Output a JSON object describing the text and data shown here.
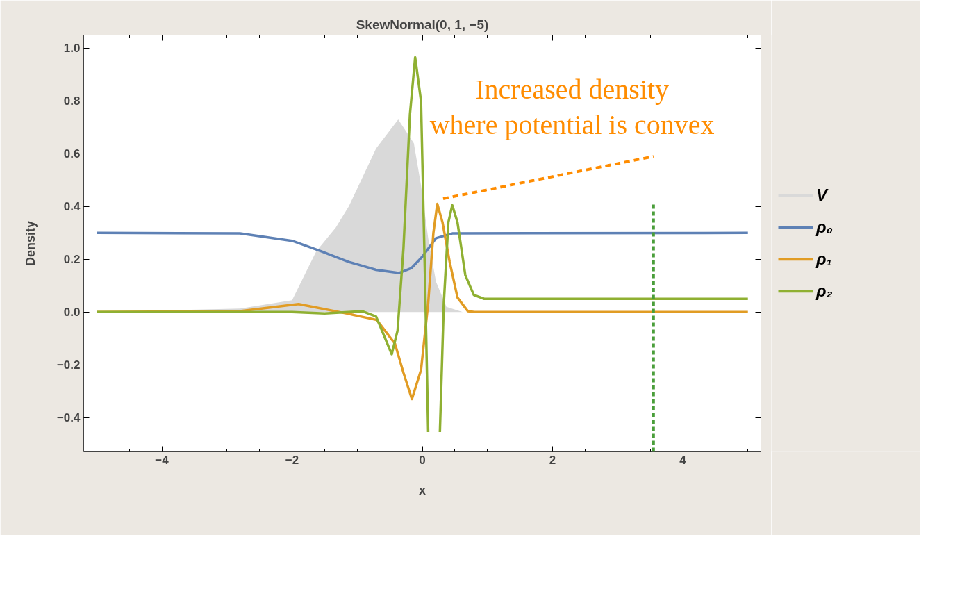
{
  "chart_data": {
    "type": "line",
    "title": "SkewNormal(0, 1, −5)",
    "xlabel": "x",
    "ylabel": "Density",
    "xlim": [
      -5.2,
      5.2
    ],
    "ylim": [
      -0.53,
      1.05
    ],
    "xticks": [
      {
        "value": -4,
        "label": "−4"
      },
      {
        "value": -2,
        "label": "−2"
      },
      0,
      2,
      4,
      {
        "value": -5,
        "label": null
      },
      {
        "value": -4.5,
        "label": null
      },
      {
        "value": -3.5,
        "label": null
      },
      {
        "value": -3,
        "label": null
      },
      {
        "value": -2.5,
        "label": null
      },
      {
        "value": -1.5,
        "label": null
      },
      {
        "value": -1,
        "label": null
      },
      {
        "value": -0.5,
        "label": null
      },
      {
        "value": 0.5,
        "label": null
      },
      {
        "value": 1,
        "label": null
      },
      {
        "value": 1.5,
        "label": null
      },
      {
        "value": 2.5,
        "label": null
      },
      {
        "value": 3,
        "label": null
      },
      {
        "value": 3.5,
        "label": null
      },
      {
        "value": 4.5,
        "label": null
      },
      {
        "value": 5,
        "label": null
      }
    ],
    "yticks": [
      {
        "value": -0.4,
        "label": "−0.4"
      },
      {
        "value": -0.2,
        "label": "−0.2"
      },
      {
        "value": 0,
        "label": "0.0"
      },
      0.2,
      0.4,
      0.6,
      0.8,
      {
        "value": 1,
        "label": "1.0"
      }
    ],
    "legend": "right",
    "series": [
      {
        "name": "V",
        "type": "area",
        "color": "#d9d9d9",
        "x": [
          -5,
          -2.8,
          -2,
          -1.63,
          -1.33,
          -1.13,
          -0.71,
          -0.37,
          -0.13,
          -0.02,
          0.09,
          0.21,
          0.37,
          0.62,
          5
        ],
        "values": [
          0,
          0.013,
          0.045,
          0.23,
          0.32,
          0.4,
          0.62,
          0.73,
          0.64,
          0.48,
          0.28,
          0.115,
          0.02,
          0,
          0
        ]
      },
      {
        "name": "ρ₀",
        "color": "#5e81b5",
        "x": [
          -5,
          -2.8,
          -2,
          -1.55,
          -1.13,
          -0.71,
          -0.36,
          -0.17,
          0,
          0.21,
          0.46,
          5
        ],
        "values": [
          0.3,
          0.298,
          0.27,
          0.23,
          0.19,
          0.16,
          0.148,
          0.166,
          0.21,
          0.28,
          0.298,
          0.3
        ]
      },
      {
        "name": "ρ₁",
        "color": "#e19c24",
        "x": [
          -5,
          -2.8,
          -1.9,
          -1.13,
          -0.7,
          -0.42,
          -0.29,
          -0.16,
          -0.02,
          0.09,
          0.17,
          0.23,
          0.31,
          0.42,
          0.54,
          0.7,
          0.8,
          5
        ],
        "values": [
          0,
          0.003,
          0.03,
          -0.007,
          -0.03,
          -0.12,
          -0.23,
          -0.33,
          -0.22,
          0.034,
          0.3,
          0.41,
          0.34,
          0.19,
          0.055,
          0.003,
          0,
          0
        ]
      },
      {
        "name": "ρ₂",
        "color": "#8fb032",
        "x": [
          -5,
          -2,
          -1.5,
          -0.92,
          -0.71,
          -0.47,
          -0.38,
          -0.29,
          -0.19,
          -0.11,
          -0.02,
          0.04,
          0.09,
          0.18,
          0.27,
          0.33,
          0.4,
          0.46,
          0.54,
          0.66,
          0.79,
          0.95,
          5
        ],
        "values": [
          0,
          0,
          -0.005,
          0.003,
          -0.017,
          -0.16,
          -0.07,
          0.24,
          0.75,
          0.966,
          0.8,
          0.14,
          -0.455,
          null,
          -0.455,
          0.034,
          0.34,
          0.405,
          0.34,
          0.14,
          0.065,
          0.05,
          0.05
        ]
      }
    ],
    "ref_lines": [
      {
        "axis": "x",
        "value": 3.55,
        "color": "#4a9e3a",
        "line_style": "dashed"
      }
    ],
    "annotations": [
      {
        "text": "Increased density\nwhere potential is convex",
        "x": 0.25,
        "y": 0.41
      }
    ]
  }
}
